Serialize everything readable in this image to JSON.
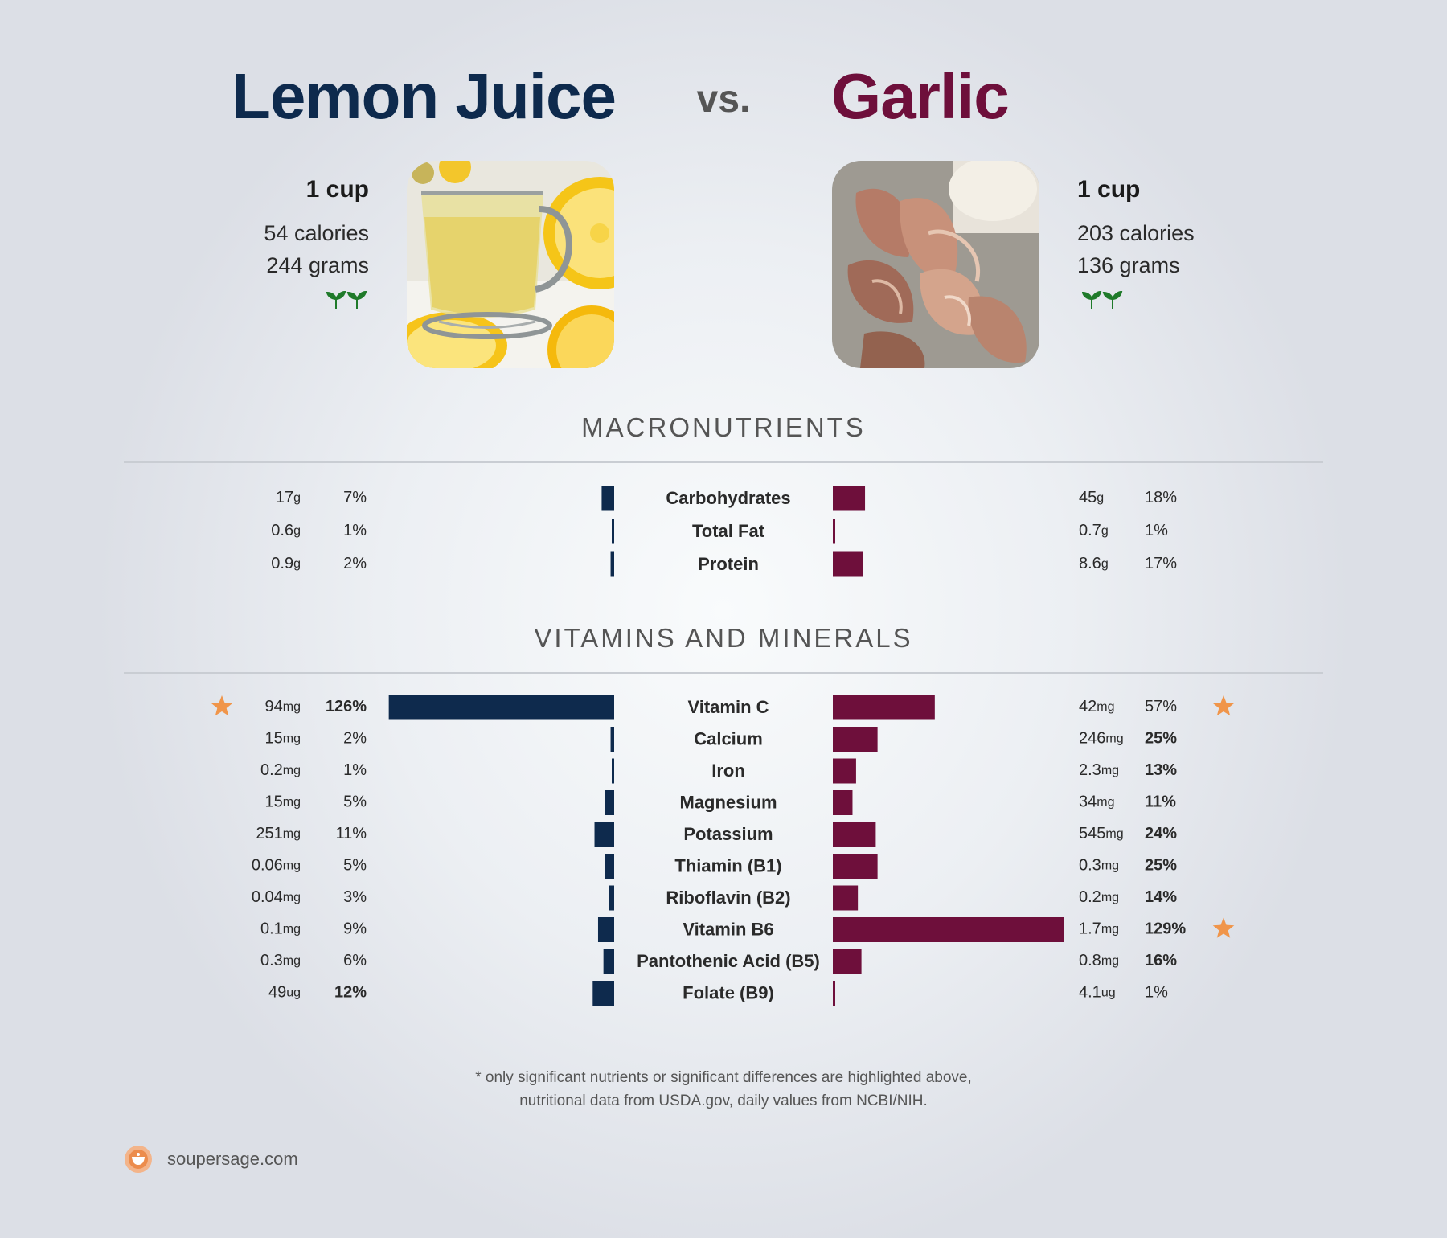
{
  "header": {
    "left_title": "Lemon Juice",
    "vs": "vs.",
    "right_title": "Garlic"
  },
  "left_food": {
    "serving": "1 cup",
    "calories": "54 calories",
    "grams": "244 grams"
  },
  "right_food": {
    "serving": "1 cup",
    "calories": "203 calories",
    "grams": "136 grams"
  },
  "sections": {
    "macros": "MACRONUTRIENTS",
    "vitamins": "VITAMINS AND MINERALS"
  },
  "colors": {
    "left": "#0e2a4d",
    "right": "#6e0f3b",
    "star": "#f0954a",
    "sprout": "#1f7a2a"
  },
  "footnote": {
    "line1": "* only significant nutrients or significant differences are highlighted above,",
    "line2": "nutritional data from USDA.gov, daily values from NCBI/NIH."
  },
  "brand": {
    "text": "soupersage.com",
    "icon": "soupersage-logo-icon"
  },
  "chart_data": [
    {
      "type": "bar",
      "title": "MACRONUTRIENTS",
      "series": [
        {
          "name": "Lemon Juice"
        },
        {
          "name": "Garlic"
        }
      ],
      "rows": [
        {
          "name": "Carbohydrates",
          "left_num": "17",
          "left_unit": "g",
          "left_pct": 7,
          "right_num": "45",
          "right_unit": "g",
          "right_pct": 18
        },
        {
          "name": "Total Fat",
          "left_num": "0.6",
          "left_unit": "g",
          "left_pct": 1,
          "right_num": "0.7",
          "right_unit": "g",
          "right_pct": 1
        },
        {
          "name": "Protein",
          "left_num": "0.9",
          "left_unit": "g",
          "left_pct": 2,
          "right_num": "8.6",
          "right_unit": "g",
          "right_pct": 17
        }
      ]
    },
    {
      "type": "bar",
      "title": "VITAMINS AND MINERALS",
      "series": [
        {
          "name": "Lemon Juice"
        },
        {
          "name": "Garlic"
        }
      ],
      "rows": [
        {
          "name": "Vitamin C",
          "left_num": "94",
          "left_unit": "mg",
          "left_pct": 126,
          "left_bold": true,
          "left_star": true,
          "right_num": "42",
          "right_unit": "mg",
          "right_pct": 57,
          "right_bold": false,
          "right_star": true
        },
        {
          "name": "Calcium",
          "left_num": "15",
          "left_unit": "mg",
          "left_pct": 2,
          "right_num": "246",
          "right_unit": "mg",
          "right_pct": 25,
          "right_bold": true
        },
        {
          "name": "Iron",
          "left_num": "0.2",
          "left_unit": "mg",
          "left_pct": 1,
          "right_num": "2.3",
          "right_unit": "mg",
          "right_pct": 13,
          "right_bold": true
        },
        {
          "name": "Magnesium",
          "left_num": "15",
          "left_unit": "mg",
          "left_pct": 5,
          "right_num": "34",
          "right_unit": "mg",
          "right_pct": 11,
          "right_bold": true
        },
        {
          "name": "Potassium",
          "left_num": "251",
          "left_unit": "mg",
          "left_pct": 11,
          "right_num": "545",
          "right_unit": "mg",
          "right_pct": 24,
          "right_bold": true
        },
        {
          "name": "Thiamin (B1)",
          "left_num": "0.06",
          "left_unit": "mg",
          "left_pct": 5,
          "right_num": "0.3",
          "right_unit": "mg",
          "right_pct": 25,
          "right_bold": true
        },
        {
          "name": "Riboflavin (B2)",
          "left_num": "0.04",
          "left_unit": "mg",
          "left_pct": 3,
          "right_num": "0.2",
          "right_unit": "mg",
          "right_pct": 14,
          "right_bold": true
        },
        {
          "name": "Vitamin B6",
          "left_num": "0.1",
          "left_unit": "mg",
          "left_pct": 9,
          "right_num": "1.7",
          "right_unit": "mg",
          "right_pct": 129,
          "right_bold": true,
          "right_star": true
        },
        {
          "name": "Pantothenic Acid (B5)",
          "left_num": "0.3",
          "left_unit": "mg",
          "left_pct": 6,
          "right_num": "0.8",
          "right_unit": "mg",
          "right_pct": 16,
          "right_bold": true
        },
        {
          "name": "Folate (B9)",
          "left_num": "49",
          "left_unit": "ug",
          "left_pct": 12,
          "left_bold": true,
          "right_num": "4.1",
          "right_unit": "ug",
          "right_pct": 1
        }
      ]
    }
  ]
}
